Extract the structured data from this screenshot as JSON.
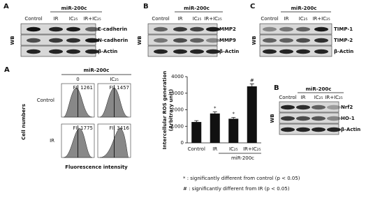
{
  "blots": [
    {
      "panel": "A",
      "group": "miR-200c",
      "lanes": [
        "Control",
        "IR",
        "IC₂₅",
        "IR+IC₂₅"
      ],
      "rows": [
        "E-cadherin",
        "N-cadherin",
        "β-Actin"
      ],
      "side": "WB"
    },
    {
      "panel": "B",
      "group": "miR-200c",
      "lanes": [
        "Control",
        "IR",
        "IC₂₅",
        "IR+IC₂₅"
      ],
      "rows": [
        "MMP2",
        "MMP9",
        "β-Actin"
      ],
      "side": "WB"
    },
    {
      "panel": "C",
      "group": "miR-200c",
      "lanes": [
        "Control",
        "IR",
        "IC₂₅",
        "IR+IC₂₅"
      ],
      "rows": [
        "TIMP-1",
        "TIMP-2",
        "β-Actin"
      ],
      "side": "WB"
    },
    {
      "panel": "B",
      "group": "miR-200c",
      "lanes": [
        "Control",
        "IR",
        "IC₂₅",
        "IR+IC₂₅"
      ],
      "rows": [
        "Nrf2",
        "HO-1",
        "β-Actin"
      ],
      "side": "WB"
    }
  ],
  "histograms": {
    "panel": "A",
    "group": "miR-200c",
    "columns": [
      "0",
      "IC₂₅"
    ],
    "rows": [
      "Control",
      "IR"
    ],
    "labels": [
      [
        "FI: 1261",
        "FI: 1457"
      ],
      [
        "FI: 1775",
        "FI: 3416"
      ]
    ],
    "ylabel": "Cell numbers",
    "xlabel": "Fluorescence intensity"
  },
  "chart_data": {
    "type": "bar",
    "ylabel": [
      "Intercellular ROS generation",
      "(Arbitrary unit)"
    ],
    "categories": [
      "Control",
      "IR",
      "IC₂₅",
      "IR+IC₂₅"
    ],
    "values": [
      1261,
      1775,
      1457,
      3416
    ],
    "errors": [
      80,
      100,
      80,
      150
    ],
    "significance": [
      null,
      "*",
      "*",
      "#"
    ],
    "group": "miR-200c",
    "color": "#111111",
    "ylim": [
      0,
      4000
    ],
    "yticks": [
      0,
      1000,
      2000,
      3000,
      4000
    ]
  },
  "footnotes": [
    "* : significantly different from control (p < 0.05)",
    "# : significantly different from IR (p < 0.05)"
  ]
}
